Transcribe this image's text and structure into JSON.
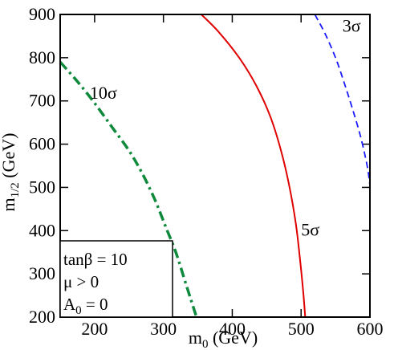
{
  "chart_data": {
    "type": "line",
    "xlabel_base": "m",
    "xlabel_sub": "0",
    "xlabel_unit": " (GeV)",
    "ylabel_base": "m",
    "ylabel_sub": "1/2",
    "ylabel_unit": " (GeV)",
    "xlim": [
      150,
      600
    ],
    "ylim": [
      200,
      900
    ],
    "xticks": [
      200,
      300,
      400,
      500,
      600
    ],
    "yticks": [
      200,
      300,
      400,
      500,
      600,
      700,
      800,
      900
    ],
    "series": [
      {
        "label": "10σ",
        "color": "#0f8a3c",
        "style": "dashdot",
        "points": [
          [
            150,
            790
          ],
          [
            175,
            745
          ],
          [
            200,
            695
          ],
          [
            225,
            640
          ],
          [
            250,
            585
          ],
          [
            270,
            530
          ],
          [
            288,
            470
          ],
          [
            303,
            410
          ],
          [
            318,
            350
          ],
          [
            330,
            290
          ],
          [
            340,
            240
          ],
          [
            348,
            200
          ]
        ]
      },
      {
        "label": "5σ",
        "color": "#e00000",
        "style": "solid",
        "points": [
          [
            355,
            900
          ],
          [
            380,
            860
          ],
          [
            410,
            800
          ],
          [
            435,
            735
          ],
          [
            455,
            665
          ],
          [
            470,
            590
          ],
          [
            482,
            510
          ],
          [
            492,
            420
          ],
          [
            498,
            340
          ],
          [
            503,
            260
          ],
          [
            506,
            200
          ]
        ]
      },
      {
        "label": "3σ",
        "color": "#1a1aff",
        "style": "dashed",
        "points": [
          [
            520,
            900
          ],
          [
            535,
            855
          ],
          [
            550,
            800
          ],
          [
            562,
            745
          ],
          [
            574,
            685
          ],
          [
            586,
            620
          ],
          [
            596,
            550
          ],
          [
            600,
            505
          ]
        ]
      }
    ],
    "annotations": [
      {
        "text": "10σ",
        "x": 193,
        "y": 705
      },
      {
        "text": "5σ",
        "x": 500,
        "y": 388
      },
      {
        "text": "3σ",
        "x": 560,
        "y": 860
      }
    ],
    "legend_box": {
      "lines": [
        "tanβ = 10",
        "μ > 0",
        "A",
        "0",
        " = 0"
      ],
      "line1": "tanβ = 10",
      "line2": "μ > 0",
      "line3_base": "A",
      "line3_sub": "0",
      "line3_rest": " = 0"
    }
  }
}
